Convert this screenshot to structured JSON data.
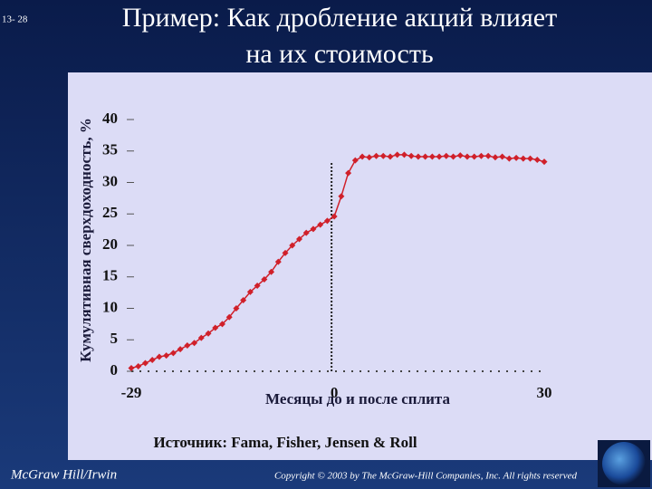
{
  "slide": {
    "number": "13- 28",
    "title_line1": "Пример:  Как дробление акций влияет",
    "title_line2": "на их стоимость",
    "source": "Источник:  Fama, Fisher, Jensen & Roll",
    "publisher": "McGraw Hill/Irwin",
    "copyright": "Copyright © 2003 by The McGraw-Hill Companies, Inc. All rights reserved"
  },
  "chart_data": {
    "type": "line",
    "ylabel": "Кумулятивная сверхдоходность, %",
    "xlabel": "Месяцы до и после сплита",
    "x": [
      -29,
      -28,
      -27,
      -26,
      -25,
      -24,
      -23,
      -22,
      -21,
      -20,
      -19,
      -18,
      -17,
      -16,
      -15,
      -14,
      -13,
      -12,
      -11,
      -10,
      -9,
      -8,
      -7,
      -6,
      -5,
      -4,
      -3,
      -2,
      -1,
      0,
      1,
      2,
      3,
      4,
      5,
      6,
      7,
      8,
      9,
      10,
      11,
      12,
      13,
      14,
      15,
      16,
      17,
      18,
      19,
      20,
      21,
      22,
      23,
      24,
      25,
      26,
      27,
      28,
      29,
      30
    ],
    "series": [
      {
        "color": "#d0202a",
        "values": [
          0.5,
          0.8,
          1.3,
          1.8,
          2.3,
          2.5,
          2.9,
          3.5,
          4.1,
          4.5,
          5.3,
          6.0,
          6.9,
          7.5,
          8.6,
          10.0,
          11.3,
          12.6,
          13.6,
          14.6,
          15.8,
          17.4,
          18.8,
          20.0,
          21.0,
          22.0,
          22.6,
          23.3,
          23.9,
          24.6,
          27.8,
          31.5,
          33.5,
          34.1,
          34.0,
          34.2,
          34.2,
          34.1,
          34.4,
          34.4,
          34.2,
          34.1,
          34.1,
          34.1,
          34.1,
          34.2,
          34.1,
          34.3,
          34.1,
          34.1,
          34.2,
          34.2,
          34.0,
          34.1,
          33.8,
          33.9,
          33.8,
          33.8,
          33.6,
          33.3
        ]
      }
    ],
    "xlim": [
      -29,
      30
    ],
    "xticks": [
      -29,
      0,
      30
    ],
    "ylim": [
      0,
      40
    ],
    "yticks": [
      0,
      5,
      10,
      15,
      20,
      25,
      30,
      35,
      40
    ]
  }
}
